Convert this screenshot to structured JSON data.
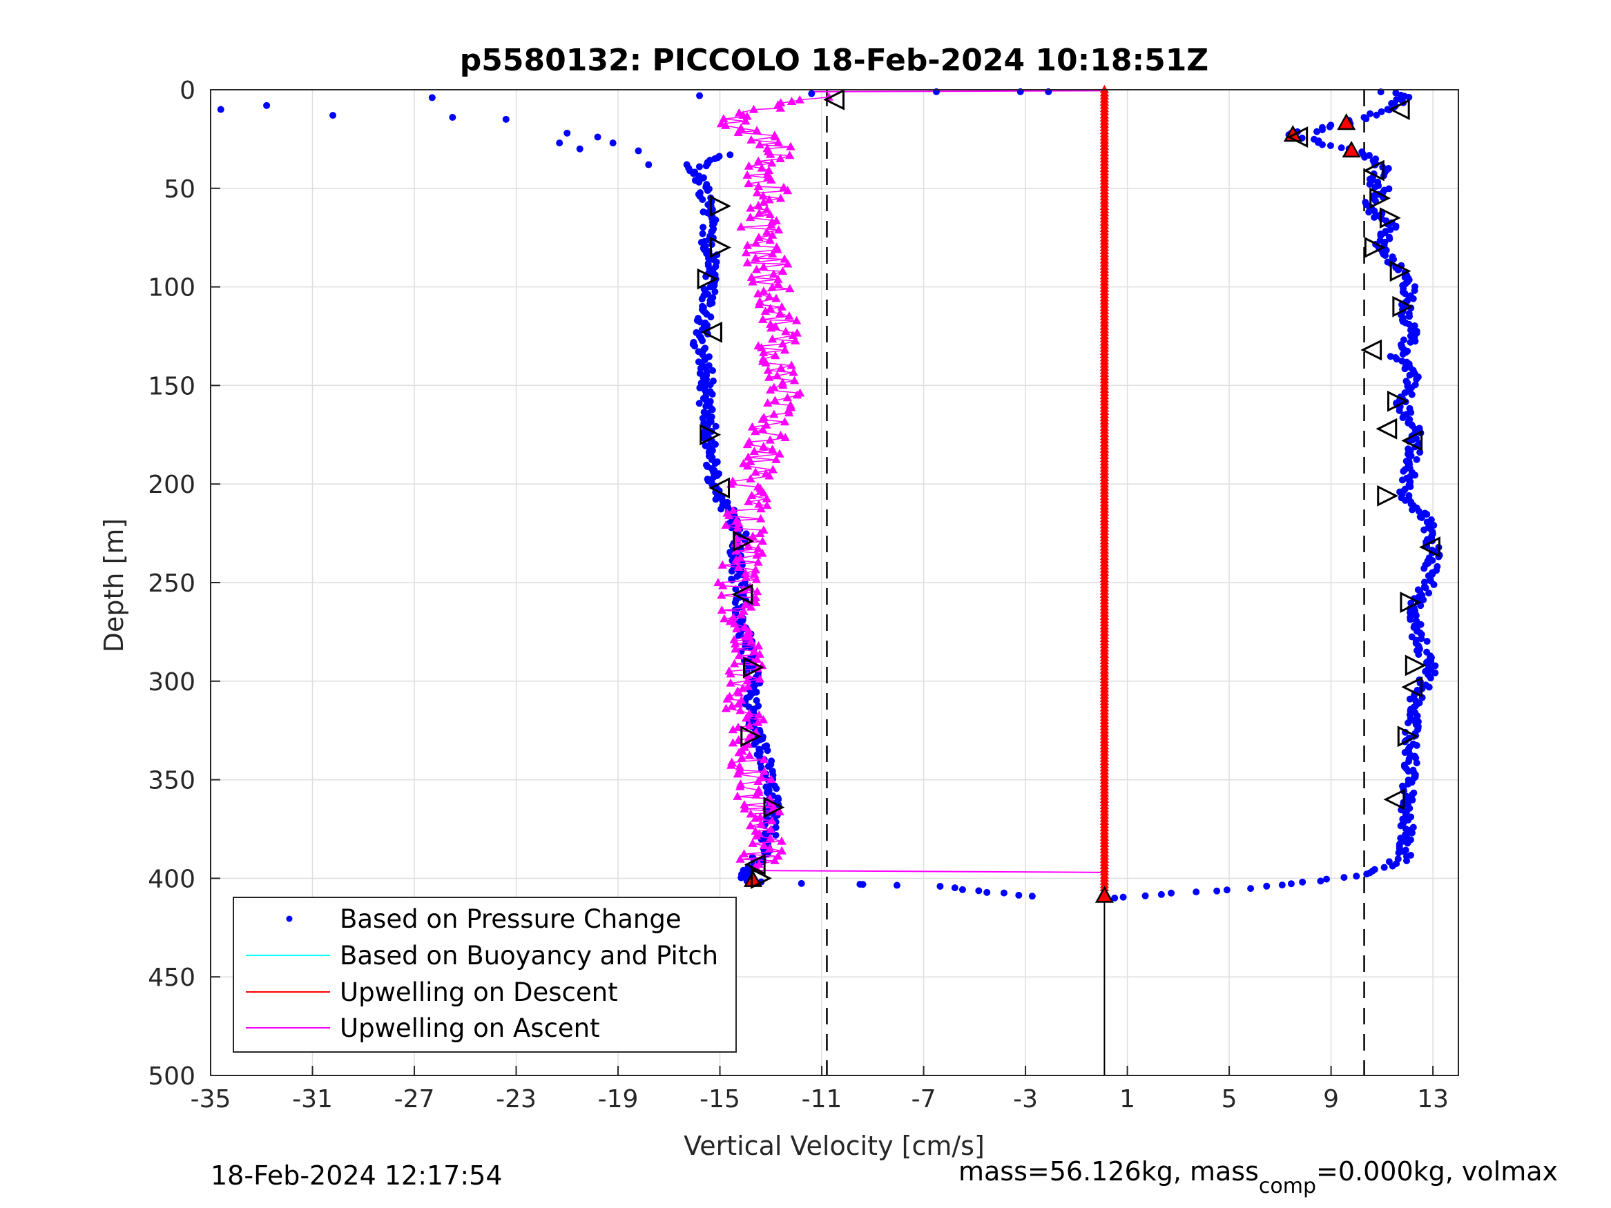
{
  "chart_data": {
    "type": "scatter",
    "title": "p5580132: PICCOLO 18-Feb-2024 10:18:51Z",
    "xlabel": "Vertical Velocity [cm/s]",
    "ylabel": "Depth [m]",
    "xlim": [
      -35,
      14
    ],
    "ylim": [
      0,
      500
    ],
    "y_reversed": true,
    "grid": true,
    "xticks": [
      -35,
      -31,
      -27,
      -23,
      -19,
      -15,
      -11,
      -7,
      -3,
      1,
      5,
      9,
      13
    ],
    "yticks": [
      0,
      50,
      100,
      150,
      200,
      250,
      300,
      350,
      400,
      450,
      500
    ],
    "legend": {
      "placement": "bottom-left",
      "entries": [
        {
          "label": "Based on Pressure Change",
          "color": "#0000ff",
          "marker": "dot"
        },
        {
          "label": "Based on Buoyancy and Pitch",
          "color": "#00ffff",
          "marker": "line"
        },
        {
          "label": "Upwelling on Descent",
          "color": "#ff0000",
          "marker": "line"
        },
        {
          "label": "Upwelling on Ascent",
          "color": "#ff00ff",
          "marker": "line"
        }
      ]
    },
    "reference_lines": {
      "dashed_x": [
        -10.8,
        10.3
      ],
      "solid_x": [
        0.1
      ],
      "solid_x_depth_range": [
        400,
        500
      ]
    },
    "series": [
      {
        "name": "Based on Pressure Change",
        "color": "#0000ff",
        "marker": "dot",
        "descent_profile": [
          [
            11.2,
            1
          ],
          [
            11.8,
            4
          ],
          [
            11.5,
            8
          ],
          [
            10.6,
            13
          ],
          [
            9.5,
            17
          ],
          [
            8.2,
            21
          ],
          [
            7.2,
            22
          ],
          [
            8.5,
            27
          ],
          [
            9.7,
            30
          ],
          [
            10.6,
            35
          ],
          [
            11.0,
            40
          ],
          [
            10.6,
            47
          ],
          [
            11.2,
            52
          ],
          [
            10.2,
            58
          ],
          [
            10.8,
            63
          ],
          [
            11.4,
            70
          ],
          [
            10.8,
            80
          ],
          [
            11.7,
            90
          ],
          [
            12.1,
            100
          ],
          [
            11.9,
            115
          ],
          [
            12.2,
            125
          ],
          [
            11.6,
            135
          ],
          [
            12.2,
            145
          ],
          [
            11.8,
            160
          ],
          [
            12.4,
            175
          ],
          [
            12.1,
            190
          ],
          [
            11.9,
            205
          ],
          [
            12.8,
            220
          ],
          [
            13.0,
            235
          ],
          [
            12.8,
            250
          ],
          [
            12.2,
            265
          ],
          [
            12.5,
            280
          ],
          [
            12.9,
            295
          ],
          [
            12.3,
            310
          ],
          [
            12.1,
            330
          ],
          [
            12.1,
            345
          ],
          [
            12.0,
            360
          ],
          [
            12.0,
            375
          ],
          [
            11.9,
            390
          ],
          [
            10.3,
            398
          ],
          [
            8.0,
            402
          ],
          [
            6.0,
            405
          ],
          [
            3.5,
            407
          ],
          [
            1.5,
            409
          ],
          [
            0.5,
            410
          ]
        ],
        "ascent_profile": [
          [
            -2.5,
            409
          ],
          [
            -4.5,
            407
          ],
          [
            -6.5,
            404
          ],
          [
            -9.5,
            403
          ],
          [
            -13.6,
            402
          ],
          [
            -14.2,
            399
          ],
          [
            -13.8,
            395
          ],
          [
            -13.2,
            385
          ],
          [
            -13.0,
            375
          ],
          [
            -12.9,
            360
          ],
          [
            -13.1,
            345
          ],
          [
            -13.5,
            330
          ],
          [
            -13.8,
            315
          ],
          [
            -13.6,
            300
          ],
          [
            -13.9,
            285
          ],
          [
            -14.1,
            270
          ],
          [
            -14.2,
            255
          ],
          [
            -14.4,
            240
          ],
          [
            -14.2,
            225
          ],
          [
            -14.8,
            210
          ],
          [
            -15.2,
            200
          ],
          [
            -15.3,
            185
          ],
          [
            -15.4,
            170
          ],
          [
            -15.6,
            160
          ],
          [
            -15.5,
            145
          ],
          [
            -15.8,
            130
          ],
          [
            -15.6,
            115
          ],
          [
            -15.4,
            100
          ],
          [
            -15.3,
            90
          ],
          [
            -15.5,
            75
          ],
          [
            -15.4,
            60
          ],
          [
            -15.8,
            47
          ],
          [
            -16.0,
            40
          ],
          [
            -15.2,
            35
          ],
          [
            -14.6,
            33
          ]
        ],
        "surface_scatter": [
          [
            -34.6,
            10
          ],
          [
            -32.8,
            8
          ],
          [
            -30.2,
            13
          ],
          [
            -26.3,
            4
          ],
          [
            -25.5,
            14
          ],
          [
            -23.4,
            15
          ],
          [
            -21.0,
            22
          ],
          [
            -21.3,
            27
          ],
          [
            -20.5,
            30
          ],
          [
            -19.8,
            24
          ],
          [
            -19.2,
            27
          ],
          [
            -18.2,
            31
          ],
          [
            -17.8,
            38
          ],
          [
            -16.3,
            38
          ],
          [
            -15.8,
            3
          ],
          [
            -11.4,
            2
          ],
          [
            -9.5,
            403
          ],
          [
            -6.5,
            1
          ],
          [
            -3.2,
            1
          ],
          [
            -2.1,
            1
          ]
        ]
      },
      {
        "name": "Based on Buoyancy and Pitch",
        "color": "#00ffff",
        "marker": "line",
        "values": []
      },
      {
        "name": "Upwelling on Descent",
        "color": "#ff0000",
        "marker": "triangle-up",
        "constant_x": 0.1,
        "depth_range": [
          0,
          410
        ],
        "isolated_markers": [
          [
            7.5,
            23
          ],
          [
            9.6,
            17
          ],
          [
            9.8,
            31
          ],
          [
            -13.7,
            401
          ],
          [
            0.1,
            409
          ]
        ]
      },
      {
        "name": "Upwelling on Ascent",
        "color": "#ff00ff",
        "marker": "triangle-up",
        "profile": [
          [
            -11.5,
            4
          ],
          [
            -13.0,
            8
          ],
          [
            -14.5,
            15
          ],
          [
            -13.8,
            22
          ],
          [
            -12.6,
            30
          ],
          [
            -13.4,
            40
          ],
          [
            -13.0,
            55
          ],
          [
            -13.5,
            70
          ],
          [
            -13.2,
            85
          ],
          [
            -12.9,
            100
          ],
          [
            -12.6,
            115
          ],
          [
            -12.8,
            130
          ],
          [
            -12.4,
            145
          ],
          [
            -12.7,
            160
          ],
          [
            -13.1,
            175
          ],
          [
            -13.5,
            190
          ],
          [
            -13.9,
            205
          ],
          [
            -14.0,
            220
          ],
          [
            -14.1,
            235
          ],
          [
            -14.3,
            250
          ],
          [
            -14.4,
            265
          ],
          [
            -14.3,
            280
          ],
          [
            -14.0,
            295
          ],
          [
            -14.2,
            310
          ],
          [
            -14.0,
            325
          ],
          [
            -13.8,
            340
          ],
          [
            -13.6,
            355
          ],
          [
            -13.4,
            370
          ],
          [
            -13.3,
            385
          ],
          [
            -13.6,
            394
          ]
        ],
        "connectors": [
          [
            [
              -11.5,
              1
            ],
            [
              0.1,
              0.5
            ]
          ],
          [
            [
              -14.2,
              396
            ],
            [
              0.1,
              397
            ]
          ]
        ]
      },
      {
        "name": "Pitch markers",
        "color": "#000000",
        "marker": "triangle-open",
        "left_pointing": [
          [
            -10.5,
            5
          ],
          [
            -15.3,
            123
          ],
          [
            -15.0,
            202
          ],
          [
            -14.1,
            256
          ],
          [
            -13.6,
            393
          ],
          [
            11.7,
            10
          ],
          [
            7.7,
            24
          ],
          [
            10.7,
            41
          ],
          [
            10.6,
            132
          ],
          [
            11.2,
            172
          ],
          [
            12.2,
            178
          ],
          [
            12.9,
            232
          ],
          [
            12.2,
            303
          ],
          [
            11.5,
            360
          ]
        ],
        "right_pointing": [
          [
            -15.0,
            59
          ],
          [
            -15.0,
            80
          ],
          [
            -15.5,
            96
          ],
          [
            -15.4,
            175
          ],
          [
            -14.1,
            229
          ],
          [
            -13.7,
            293
          ],
          [
            -13.8,
            328
          ],
          [
            -12.9,
            364
          ],
          [
            -13.4,
            400
          ],
          [
            10.9,
            55
          ],
          [
            11.3,
            65
          ],
          [
            10.7,
            80
          ],
          [
            11.7,
            92
          ],
          [
            11.8,
            110
          ],
          [
            11.6,
            158
          ],
          [
            11.2,
            206
          ],
          [
            12.1,
            260
          ],
          [
            12.3,
            292
          ],
          [
            12.0,
            328
          ]
        ]
      }
    ]
  },
  "footer": {
    "timestamp": "18-Feb-2024 12:17:54",
    "mass_prefix": "mass=56.126kg, mass",
    "mass_subscript": "comp",
    "mass_suffix": "=0.000kg, volmax"
  }
}
